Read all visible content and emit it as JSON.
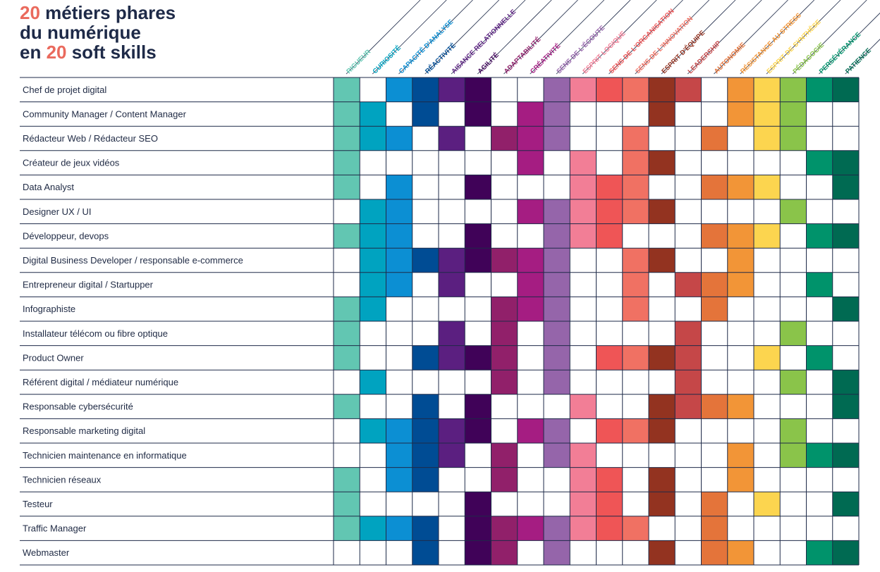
{
  "title": {
    "line1_num": "20",
    "line1_text": " métiers phares",
    "line2_text": "du numérique",
    "line3_pre": "en ",
    "line3_num": "20",
    "line3_post": " soft skills"
  },
  "chart_data": {
    "type": "heatmap",
    "skills": [
      {
        "label": "RIGUEUR",
        "color": "#62c6b2"
      },
      {
        "label": "CURIOSITÉ",
        "color": "#00a3c0"
      },
      {
        "label": "CAPACITÉ D'ANALYSE",
        "color": "#0c8fd3"
      },
      {
        "label": "RÉACTIVITÉ",
        "color": "#004c94"
      },
      {
        "label": "AISANCE RELATIONNELLE",
        "color": "#5b1f80"
      },
      {
        "label": "AGILITÉ",
        "color": "#400258"
      },
      {
        "label": "ADAPTABILITÉ",
        "color": "#91206a"
      },
      {
        "label": "CRÉATIVITÉ",
        "color": "#a51d82"
      },
      {
        "label": "SENS DE L'ÉCOUTE",
        "color": "#9565aa"
      },
      {
        "label": "ESPRIT LOGIQUE",
        "color": "#f27e96"
      },
      {
        "label": "SENS DE L'ORGANISATION",
        "color": "#ef5556"
      },
      {
        "label": "SENS DE L'INNOVATION",
        "color": "#f07163"
      },
      {
        "label": "ESPRIT D'ÉQUIPE",
        "color": "#933320"
      },
      {
        "label": "LEADERSHIP",
        "color": "#c54748"
      },
      {
        "label": "AUTONOMIE",
        "color": "#e4743a"
      },
      {
        "label": "RÉSISTANCE AU STRESS",
        "color": "#f29537"
      },
      {
        "label": "ESPRIT DE SYNTHÈSE",
        "color": "#fcd54f"
      },
      {
        "label": "PÉDAGOGIE",
        "color": "#8ac44a"
      },
      {
        "label": "PERSÉVÉRANCE",
        "color": "#00936b"
      },
      {
        "label": "PATIENCE",
        "color": "#006a52"
      }
    ],
    "jobs": [
      {
        "label": "Chef de projet digital",
        "skills": [
          1,
          0,
          1,
          1,
          1,
          1,
          0,
          0,
          1,
          1,
          1,
          1,
          1,
          1,
          0,
          1,
          1,
          1,
          1,
          1
        ]
      },
      {
        "label": "Community Manager / Content Manager",
        "skills": [
          1,
          1,
          0,
          1,
          0,
          1,
          0,
          1,
          1,
          0,
          0,
          0,
          1,
          0,
          0,
          1,
          1,
          1,
          0,
          0
        ]
      },
      {
        "label": "Rédacteur Web / Rédacteur SEO",
        "skills": [
          1,
          1,
          1,
          0,
          1,
          0,
          1,
          1,
          1,
          0,
          0,
          1,
          0,
          0,
          1,
          0,
          1,
          1,
          0,
          0
        ]
      },
      {
        "label": "Créateur de jeux vidéos",
        "skills": [
          1,
          0,
          0,
          0,
          0,
          0,
          0,
          1,
          0,
          1,
          0,
          1,
          1,
          0,
          0,
          0,
          0,
          0,
          1,
          1
        ]
      },
      {
        "label": "Data Analyst",
        "skills": [
          1,
          0,
          1,
          0,
          0,
          1,
          0,
          0,
          0,
          1,
          1,
          1,
          0,
          0,
          1,
          1,
          1,
          0,
          0,
          1
        ]
      },
      {
        "label": "Designer UX / UI",
        "skills": [
          0,
          1,
          1,
          0,
          0,
          0,
          0,
          1,
          1,
          1,
          1,
          1,
          1,
          0,
          0,
          0,
          0,
          1,
          0,
          0
        ]
      },
      {
        "label": "Développeur, devops",
        "skills": [
          1,
          1,
          1,
          0,
          0,
          1,
          0,
          0,
          1,
          1,
          1,
          0,
          0,
          0,
          1,
          1,
          1,
          0,
          1,
          1
        ]
      },
      {
        "label": "Digital Business Developer / responsable e-commerce",
        "skills": [
          0,
          1,
          1,
          1,
          1,
          1,
          1,
          1,
          1,
          0,
          0,
          1,
          1,
          0,
          0,
          1,
          0,
          0,
          0,
          0
        ]
      },
      {
        "label": "Entrepreneur digital / Startupper",
        "skills": [
          0,
          1,
          1,
          0,
          1,
          0,
          0,
          1,
          1,
          0,
          0,
          1,
          0,
          1,
          1,
          1,
          0,
          0,
          1,
          0
        ]
      },
      {
        "label": "Infographiste",
        "skills": [
          1,
          1,
          0,
          0,
          0,
          0,
          1,
          1,
          1,
          0,
          0,
          1,
          0,
          0,
          1,
          0,
          0,
          0,
          0,
          1
        ]
      },
      {
        "label": "Installateur télécom ou  fibre optique",
        "skills": [
          1,
          0,
          0,
          0,
          1,
          0,
          1,
          0,
          1,
          0,
          0,
          0,
          0,
          1,
          0,
          0,
          0,
          1,
          0,
          0
        ]
      },
      {
        "label": "Product Owner",
        "skills": [
          1,
          0,
          0,
          1,
          1,
          1,
          1,
          0,
          1,
          0,
          1,
          1,
          1,
          1,
          0,
          0,
          1,
          0,
          1,
          0
        ]
      },
      {
        "label": "Référent digital / médiateur numérique",
        "skills": [
          0,
          1,
          0,
          0,
          0,
          0,
          1,
          0,
          1,
          0,
          0,
          0,
          0,
          1,
          0,
          0,
          0,
          1,
          0,
          1
        ]
      },
      {
        "label": "Responsable cybersécurité",
        "skills": [
          1,
          0,
          0,
          1,
          0,
          1,
          0,
          0,
          0,
          1,
          0,
          0,
          1,
          1,
          1,
          1,
          0,
          0,
          0,
          1
        ]
      },
      {
        "label": "Responsable marketing digital",
        "skills": [
          0,
          1,
          1,
          1,
          1,
          1,
          0,
          1,
          1,
          0,
          1,
          1,
          1,
          0,
          0,
          0,
          0,
          1,
          0,
          0
        ]
      },
      {
        "label": "Technicien maintenance en informatique",
        "skills": [
          0,
          0,
          1,
          1,
          1,
          0,
          1,
          0,
          1,
          1,
          0,
          0,
          0,
          0,
          0,
          1,
          0,
          1,
          1,
          1
        ]
      },
      {
        "label": "Technicien réseaux",
        "skills": [
          1,
          0,
          1,
          1,
          0,
          0,
          1,
          0,
          0,
          1,
          1,
          0,
          1,
          0,
          0,
          1,
          0,
          0,
          0,
          0
        ]
      },
      {
        "label": "Testeur",
        "skills": [
          1,
          0,
          0,
          0,
          0,
          1,
          0,
          0,
          0,
          1,
          1,
          0,
          1,
          0,
          1,
          0,
          1,
          0,
          0,
          1
        ]
      },
      {
        "label": "Traffic Manager",
        "skills": [
          1,
          1,
          1,
          1,
          0,
          1,
          1,
          1,
          1,
          1,
          1,
          1,
          0,
          0,
          1,
          0,
          0,
          0,
          0,
          0
        ]
      },
      {
        "label": "Webmaster",
        "skills": [
          0,
          0,
          0,
          1,
          0,
          1,
          1,
          0,
          1,
          0,
          0,
          0,
          1,
          0,
          1,
          1,
          0,
          0,
          1,
          1
        ]
      }
    ]
  }
}
